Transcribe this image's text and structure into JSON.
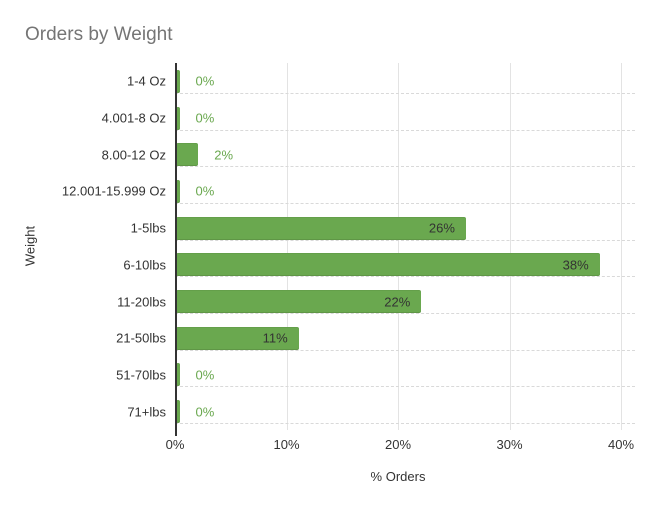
{
  "chart_data": {
    "type": "bar",
    "orientation": "horizontal",
    "title": "Orders by Weight",
    "xlabel": "% Orders",
    "ylabel": "Weight",
    "categories": [
      "1-4 Oz",
      "4.001-8 Oz",
      "8.00-12 Oz",
      "12.001-15.999 Oz",
      "1-5lbs",
      "6-10lbs",
      "11-20lbs",
      "21-50lbs",
      "51-70lbs",
      "71+lbs"
    ],
    "values": [
      0,
      0,
      2,
      0,
      26,
      38,
      22,
      11,
      0,
      0
    ],
    "value_labels": [
      "0%",
      "0%",
      "2%",
      "0%",
      "26%",
      "38%",
      "22%",
      "11%",
      "0%",
      "0%"
    ],
    "xlim": [
      0,
      40
    ],
    "x_ticks": [
      {
        "value": 0,
        "label": "0%"
      },
      {
        "value": 10,
        "label": "10%"
      },
      {
        "value": 20,
        "label": "20%"
      },
      {
        "value": 30,
        "label": "30%"
      },
      {
        "value": 40,
        "label": "40%"
      }
    ],
    "grid": "vertical",
    "legend": "none",
    "colors": {
      "bar": "#6aa84f",
      "title": "#757575",
      "text": "#333333",
      "gridline": "#e3e3e3",
      "axis": "#333333",
      "value_inside": "#333333",
      "value_outside": "#6aa84f"
    }
  }
}
